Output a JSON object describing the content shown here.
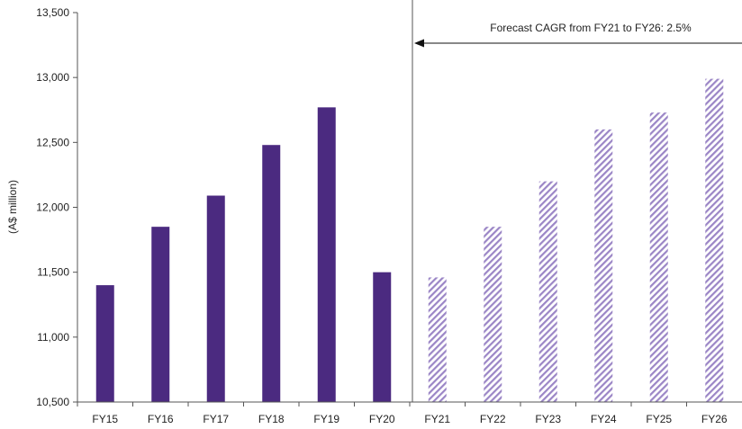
{
  "chart_data": {
    "type": "bar",
    "title": "",
    "xlabel": "",
    "ylabel": "(A$ million)",
    "ylim": [
      10500,
      13500
    ],
    "yticks": [
      10500,
      11000,
      11500,
      12000,
      12500,
      13000,
      13500
    ],
    "ytick_labels": [
      "10,500",
      "11,000",
      "11,500",
      "12,000",
      "12,500",
      "13,000",
      "13,500"
    ],
    "categories": [
      "FY15",
      "FY16",
      "FY17",
      "FY18",
      "FY19",
      "FY20",
      "FY21",
      "FY22",
      "FY23",
      "FY24",
      "FY25",
      "FY26"
    ],
    "series": [
      {
        "style": "solid",
        "color": "#4b2a80",
        "values": [
          11400,
          11850,
          12090,
          12480,
          12770,
          11500,
          null,
          null,
          null,
          null,
          null,
          null
        ]
      },
      {
        "style": "hatched",
        "color": "#9b86c6",
        "values": [
          null,
          null,
          null,
          null,
          null,
          null,
          11460,
          11850,
          12200,
          12600,
          12730,
          12990
        ]
      }
    ],
    "divider_after": "FY20",
    "annotation": {
      "text": "Forecast CAGR from FY21 to FY26: 2.5%",
      "arrow": "left"
    },
    "grid": false,
    "legend": "none"
  }
}
